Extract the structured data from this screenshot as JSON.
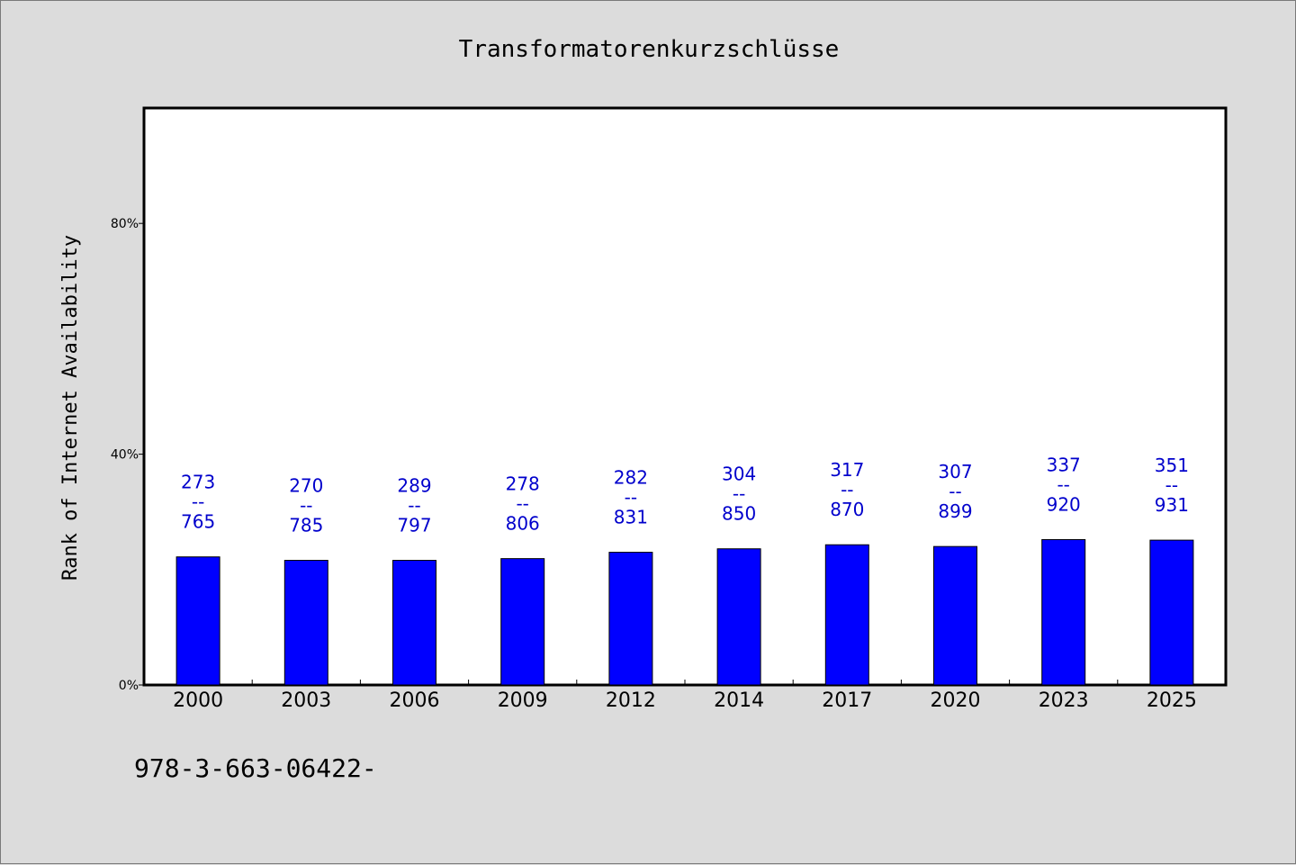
{
  "colors": {
    "background": "#dcdcdc",
    "plot_background": "#ffffff",
    "bar": "#0000ff",
    "label": "#0000cc"
  },
  "footer": {
    "text": "978-3-663-06422-"
  },
  "chart_data": {
    "type": "bar",
    "title": "Transformatorenkurzschlüsse",
    "xlabel": "",
    "ylabel": "Rank of Internet Availability",
    "categories": [
      "2000",
      "2003",
      "2006",
      "2009",
      "2012",
      "2014",
      "2017",
      "2020",
      "2023",
      "2025"
    ],
    "values": [
      22.2,
      21.6,
      21.6,
      21.9,
      23.0,
      23.6,
      24.3,
      24.0,
      25.2,
      25.1
    ],
    "bar_labels": [
      {
        "top": "273",
        "mid": "--",
        "bottom": "765"
      },
      {
        "top": "270",
        "mid": "--",
        "bottom": "785"
      },
      {
        "top": "289",
        "mid": "--",
        "bottom": "797"
      },
      {
        "top": "278",
        "mid": "--",
        "bottom": "806"
      },
      {
        "top": "282",
        "mid": "--",
        "bottom": "831"
      },
      {
        "top": "304",
        "mid": "--",
        "bottom": "850"
      },
      {
        "top": "317",
        "mid": "--",
        "bottom": "870"
      },
      {
        "top": "307",
        "mid": "--",
        "bottom": "899"
      },
      {
        "top": "337",
        "mid": "--",
        "bottom": "920"
      },
      {
        "top": "351",
        "mid": "--",
        "bottom": "931"
      }
    ],
    "yticks": [
      0,
      40,
      80
    ],
    "ytick_labels": [
      "0%",
      "40%",
      "80%"
    ],
    "ylim": [
      0,
      100
    ],
    "grid": false,
    "legend": "none"
  }
}
